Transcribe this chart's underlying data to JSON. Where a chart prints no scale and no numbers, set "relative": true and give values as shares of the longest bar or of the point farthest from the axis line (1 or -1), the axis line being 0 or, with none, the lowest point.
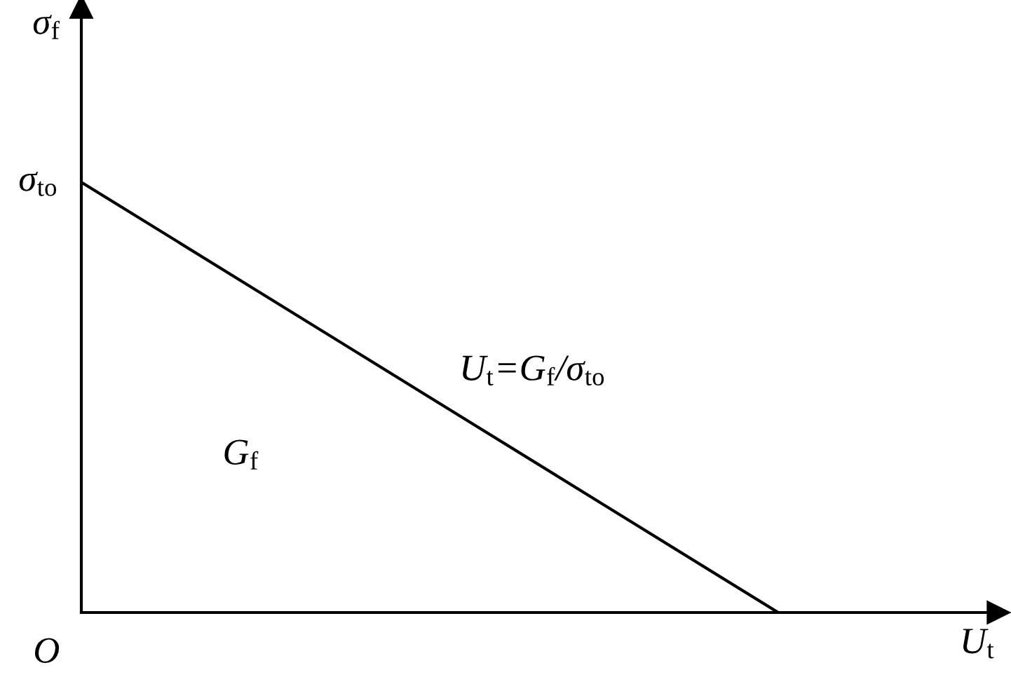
{
  "chart_data": {
    "type": "line",
    "relative": true,
    "xlabel": "U$_{t}$",
    "ylabel": "σ$_{f}$",
    "categories": [
      null,
      null,
      null,
      null,
      null
    ],
    "values": [
      1,
      0.75,
      0.5,
      0.25,
      0
    ],
    "color": "#000000",
    "marker": "none",
    "line_style": "solid",
    "annotations": [
      "σ$_{to}$",
      "O",
      "U$_{t}$=G$_{f}$/σ$_{to}$",
      "G$_{f}$"
    ]
  }
}
